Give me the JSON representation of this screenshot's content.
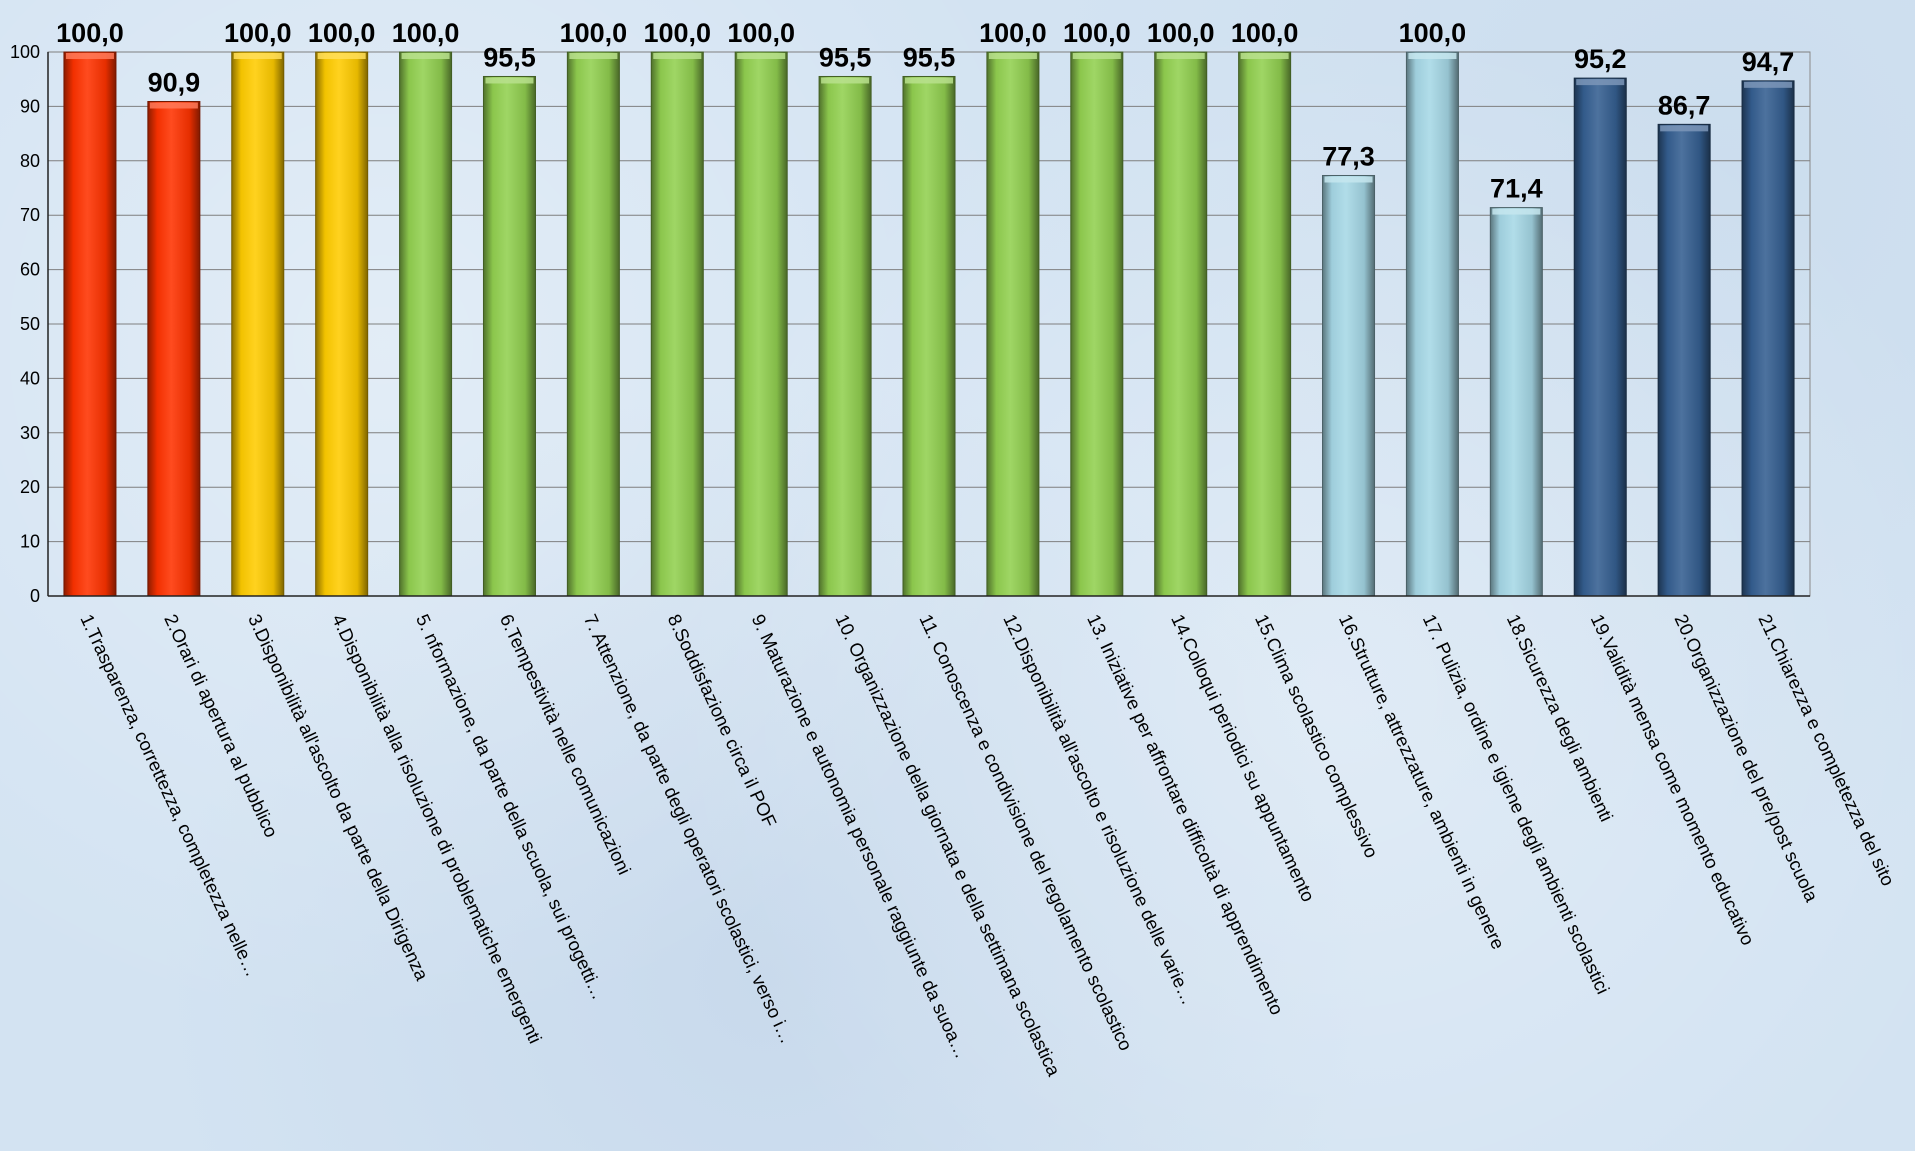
{
  "chart_data": {
    "type": "bar",
    "title": "",
    "xlabel": "",
    "ylabel": "",
    "ylim": [
      0,
      100
    ],
    "yticks": [
      0,
      10,
      20,
      30,
      40,
      50,
      60,
      70,
      80,
      90,
      100
    ],
    "grid": true,
    "categories": [
      "1.Trasparenza, correttezza, completezza nelle…",
      "2.Orari di apertura al pubblico",
      "3.Disponibilità all'ascolto da parte della Dirigenza",
      "4.Disponibilità alla risoluzione di problematiche emergenti",
      "5. nformazione, da parte della scuola, sui progetti…",
      "6.Tempestività nelle comunicazioni",
      "7. Attenzione, da parte degli operatori scolastici, verso i…",
      "8.Soddisfazione circa il POF",
      "9. Maturazione e autonomia personale raggiunte da suoa…",
      "10. Organizzazione della giornata e della settimana scolastica",
      "11. Conoscenza e condivisione del regolamento scolastico",
      "12.Disponibilità all'ascolto e risoluzione delle varie…",
      "13. Iniziative per affrontare difficoltà di apprendimento",
      "14.Colloqui periodici su appuntamento",
      "15.Clima scolastico complessivo",
      "16.Strutture, attrezzature, ambienti in genere",
      "17. Pulizia, ordine e igiene degli ambienti scolastici",
      "18.Sicurezza degli ambienti",
      "19.Validità mensa come momento educativo",
      "20.Organizzazione del pre/post scuola",
      "21.Chiarezza e completezza del sito"
    ],
    "values": [
      100.0,
      90.9,
      100.0,
      100.0,
      100.0,
      95.5,
      100.0,
      100.0,
      100.0,
      95.5,
      95.5,
      100.0,
      100.0,
      100.0,
      100.0,
      77.3,
      100.0,
      71.4,
      95.2,
      86.7,
      94.7
    ],
    "value_labels": [
      "100,0",
      "90,9",
      "100,0",
      "100,0",
      "100,0",
      "95,5",
      "100,0",
      "100,0",
      "100,0",
      "95,5",
      "95,5",
      "100,0",
      "100,0",
      "100,0",
      "100,0",
      "77,3",
      "100,0",
      "71,4",
      "95,2",
      "86,7",
      "94,7"
    ],
    "groups": [
      "red",
      "red",
      "yellow",
      "yellow",
      "green",
      "green",
      "green",
      "green",
      "green",
      "green",
      "green",
      "green",
      "green",
      "green",
      "green",
      "lightblue",
      "lightblue",
      "lightblue",
      "navy",
      "navy",
      "navy"
    ],
    "colors": {
      "red": "#ff3300",
      "yellow": "#ffcc00",
      "green": "#92d050",
      "lightblue": "#a6d8e6",
      "navy": "#355f91"
    }
  }
}
